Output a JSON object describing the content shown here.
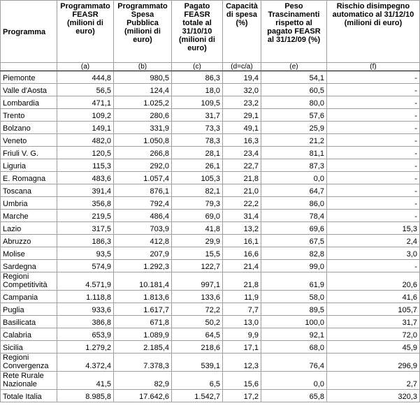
{
  "table": {
    "headers": [
      "Programma",
      "Programmato FEASR (milioni di euro)",
      "Programmato Spesa Pubblica (milioni di euro)",
      "Pagato FEASR totale al 31/10/10 (milioni di euro)",
      "Capacità di spesa (%)",
      "Peso Trascinamenti rispetto al pagato FEASR al 31/12/09 (%)",
      "Rischio disimpegno automatico al 31/12/10 (milioni di euro)"
    ],
    "subheaders": [
      "(a)",
      "(b)",
      "(c)",
      "(d=c/a)",
      "(e)",
      "(f)"
    ],
    "rows": [
      [
        "Piemonte",
        "444,8",
        "980,5",
        "86,3",
        "19,4",
        "54,1",
        "-"
      ],
      [
        "Valle d'Aosta",
        "56,5",
        "124,4",
        "18,0",
        "32,0",
        "60,5",
        "-"
      ],
      [
        "Lombardia",
        "471,1",
        "1.025,2",
        "109,5",
        "23,2",
        "80,0",
        "-"
      ],
      [
        "Trento",
        "109,2",
        "280,6",
        "31,7",
        "29,1",
        "57,6",
        "-"
      ],
      [
        "Bolzano",
        "149,1",
        "331,9",
        "73,3",
        "49,1",
        "25,9",
        "-"
      ],
      [
        "Veneto",
        "482,0",
        "1.050,8",
        "78,3",
        "16,3",
        "21,2",
        "-"
      ],
      [
        "Friuli V. G.",
        "120,5",
        "266,8",
        "28,1",
        "23,4",
        "81,1",
        "-"
      ],
      [
        "Liguria",
        "115,3",
        "292,0",
        "26,1",
        "22,7",
        "87,3",
        "-"
      ],
      [
        "E. Romagna",
        "483,6",
        "1.057,4",
        "105,3",
        "21,8",
        "0,0",
        "-"
      ],
      [
        "Toscana",
        "391,4",
        "876,1",
        "82,1",
        "21,0",
        "64,7",
        "-"
      ],
      [
        "Umbria",
        "356,8",
        "792,4",
        "79,3",
        "22,2",
        "86,0",
        "-"
      ],
      [
        "Marche",
        "219,5",
        "486,4",
        "69,0",
        "31,4",
        "78,4",
        "-"
      ],
      [
        "Lazio",
        "317,5",
        "703,9",
        "41,8",
        "13,2",
        "69,6",
        "15,3"
      ],
      [
        "Abruzzo",
        "186,3",
        "412,8",
        "29,9",
        "16,1",
        "67,5",
        "2,4"
      ],
      [
        "Molise",
        "93,5",
        "207,9",
        "15,5",
        "16,6",
        "82,8",
        "3,0"
      ],
      [
        "Sardegna",
        "574,9",
        "1.292,3",
        "122,7",
        "21,4",
        "99,0",
        "-"
      ],
      [
        "Regioni Competitività",
        "4.571,9",
        "10.181,4",
        "997,1",
        "21,8",
        "61,9",
        "20,6"
      ],
      [
        "Campania",
        "1.118,8",
        "1.813,6",
        "133,6",
        "11,9",
        "58,0",
        "41,6"
      ],
      [
        "Puglia",
        "933,6",
        "1.617,7",
        "72,2",
        "7,7",
        "89,5",
        "105,7"
      ],
      [
        "Basilicata",
        "386,8",
        "671,8",
        "50,2",
        "13,0",
        "100,0",
        "31,7"
      ],
      [
        "Calabria",
        "653,9",
        "1.089,9",
        "64,5",
        "9,9",
        "92,1",
        "72,0"
      ],
      [
        "Sicilia",
        "1.279,2",
        "2.185,4",
        "218,6",
        "17,1",
        "68,0",
        "45,9"
      ],
      [
        "Regioni Convergenza",
        "4.372,4",
        "7.378,3",
        "539,1",
        "12,3",
        "76,4",
        "296,9"
      ],
      [
        "Rete Rurale Nazionale",
        "41,5",
        "82,9",
        "6,5",
        "15,6",
        "0,0",
        "2,7"
      ],
      [
        "Totale Italia",
        "8.985,8",
        "17.642,6",
        "1.542,7",
        "17,2",
        "65,8",
        "320,3"
      ]
    ]
  }
}
